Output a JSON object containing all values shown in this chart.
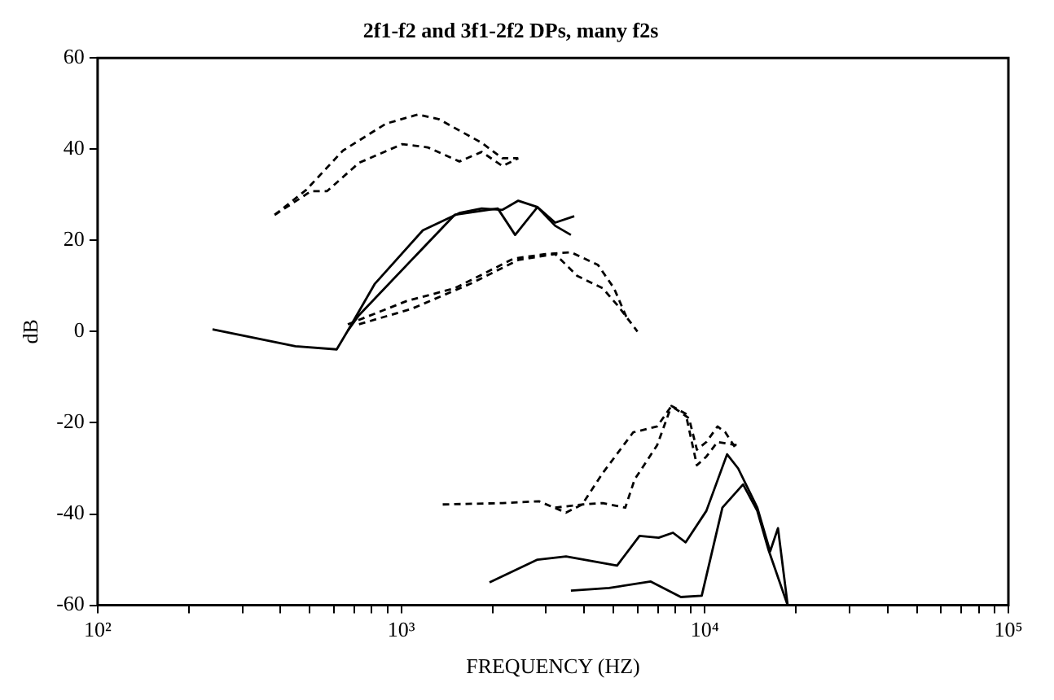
{
  "chart_data": {
    "type": "line",
    "title": "2f1-f2 and 3f1-2f2 DPs, many f2s",
    "xlabel": "FREQUENCY (HZ)",
    "ylabel": "dB",
    "log": "x",
    "grid": false,
    "legend": false,
    "marker": "none",
    "xlim": [
      100,
      100000
    ],
    "ylim": [
      -60,
      60
    ],
    "yticks": [
      -60,
      -40,
      -20,
      0,
      20,
      40,
      60
    ],
    "xticks": [
      {
        "value": 100,
        "label": "10²"
      },
      {
        "value": 200,
        "label": null
      },
      {
        "value": 300,
        "label": null
      },
      {
        "value": 400,
        "label": null
      },
      {
        "value": 500,
        "label": null
      },
      {
        "value": 600,
        "label": null
      },
      {
        "value": 700,
        "label": null
      },
      {
        "value": 800,
        "label": null
      },
      {
        "value": 900,
        "label": null
      },
      {
        "value": 1000,
        "label": "10³"
      },
      {
        "value": 2000,
        "label": null
      },
      {
        "value": 3000,
        "label": null
      },
      {
        "value": 4000,
        "label": null
      },
      {
        "value": 5000,
        "label": null
      },
      {
        "value": 6000,
        "label": null
      },
      {
        "value": 7000,
        "label": null
      },
      {
        "value": 8000,
        "label": null
      },
      {
        "value": 9000,
        "label": null
      },
      {
        "value": 10000,
        "label": "10⁴"
      },
      {
        "value": 20000,
        "label": null
      },
      {
        "value": 30000,
        "label": null
      },
      {
        "value": 40000,
        "label": null
      },
      {
        "value": 50000,
        "label": null
      },
      {
        "value": 60000,
        "label": null
      },
      {
        "value": 70000,
        "label": null
      },
      {
        "value": 80000,
        "label": null
      },
      {
        "value": 90000,
        "label": null
      },
      {
        "value": 100000,
        "label": "10⁵"
      }
    ],
    "series": [
      {
        "color": "#000000",
        "line_style": "dashed",
        "x": [
          383,
          487,
          643,
          891,
          1135,
          1328,
          1841,
          2155,
          2430
        ],
        "values": [
          25.6,
          31.1,
          39.7,
          45.6,
          47.6,
          46.6,
          41.4,
          38,
          38
        ]
      },
      {
        "color": "#000000",
        "line_style": "dashed",
        "x": [
          383,
          505,
          570,
          726,
          1007,
          1222,
          1555,
          1841,
          2155,
          2430
        ],
        "values": [
          25.6,
          30.8,
          30.8,
          37,
          41.1,
          40.4,
          37.3,
          39.4,
          36.3,
          38
        ]
      },
      {
        "color": "#000000",
        "line_style": "solid",
        "x": [
          239,
          448,
          613,
          667,
          819,
          1178,
          1555,
          1841,
          2155,
          2430,
          2811,
          3215,
          3622
        ],
        "values": [
          0.5,
          -3.2,
          -3.9,
          0.2,
          10.5,
          22.2,
          26,
          27,
          26.7,
          28.7,
          27.3,
          23.2,
          21.2
        ]
      },
      {
        "color": "#000000",
        "line_style": "solid",
        "x": [
          667,
          726,
          1500,
          2080,
          2373,
          2811,
          3215,
          3715
        ],
        "values": [
          0.2,
          3.6,
          25.6,
          27,
          21.2,
          27.3,
          23.9,
          25.3
        ]
      },
      {
        "color": "#000000",
        "line_style": "dashed",
        "x": [
          667,
          1042,
          1500,
          2345,
          2986,
          3622,
          4449,
          5024,
          5534
        ],
        "values": [
          1.6,
          6.7,
          9.5,
          16,
          17,
          17.4,
          14.6,
          9.5,
          3
        ]
      },
      {
        "color": "#000000",
        "line_style": "dashed",
        "x": [
          726,
          1082,
          1691,
          2430,
          3215,
          3802,
          4613,
          5212,
          6000
        ],
        "values": [
          1.6,
          5,
          10.5,
          15.7,
          17,
          12.2,
          9.5,
          5.4,
          0
        ]
      },
      {
        "color": "#000000",
        "line_style": "dashed",
        "x": [
          1370,
          2155,
          2844,
          3491,
          3945,
          4613,
          5807,
          6966,
          7766,
          8872,
          9418,
          10120,
          11010,
          11690,
          12730
        ],
        "values": [
          -37.9,
          -37.6,
          -37.2,
          -39.7,
          -37.9,
          -31,
          -22.1,
          -20.8,
          -16.3,
          -19,
          -25.9,
          -24.2,
          -20.8,
          -22.1,
          -25.9
        ]
      },
      {
        "color": "#000000",
        "line_style": "dashed",
        "x": [
          3215,
          3945,
          4613,
          5470,
          5875,
          6966,
          7766,
          8650,
          9418,
          10120,
          11010,
          12730
        ],
        "values": [
          -38.6,
          -37.9,
          -37.6,
          -38.6,
          -32.4,
          -24.9,
          -16.3,
          -18,
          -29.3,
          -27.4,
          -24.2,
          -24.9
        ]
      },
      {
        "color": "#000000",
        "line_style": "solid",
        "x": [
          1954,
          2811,
          3491,
          5140,
          6095,
          7047,
          7855,
          8650,
          10120,
          11840,
          12880,
          14890,
          16410,
          17420,
          18750
        ],
        "values": [
          -55,
          -50,
          -49.3,
          -51.3,
          -44.8,
          -45.2,
          -44.1,
          -46.2,
          -39.3,
          -26.9,
          -30,
          -38.6,
          -48.2,
          -43.1,
          -60
        ]
      },
      {
        "color": "#000000",
        "line_style": "solid",
        "x": [
          3622,
          4842,
          6637,
          8340,
          9770,
          11430,
          13370,
          14890,
          16220,
          18750
        ],
        "values": [
          -56.8,
          -56.2,
          -54.8,
          -58.2,
          -57.9,
          -38.6,
          -33.5,
          -39.3,
          -47.9,
          -60
        ]
      }
    ]
  }
}
